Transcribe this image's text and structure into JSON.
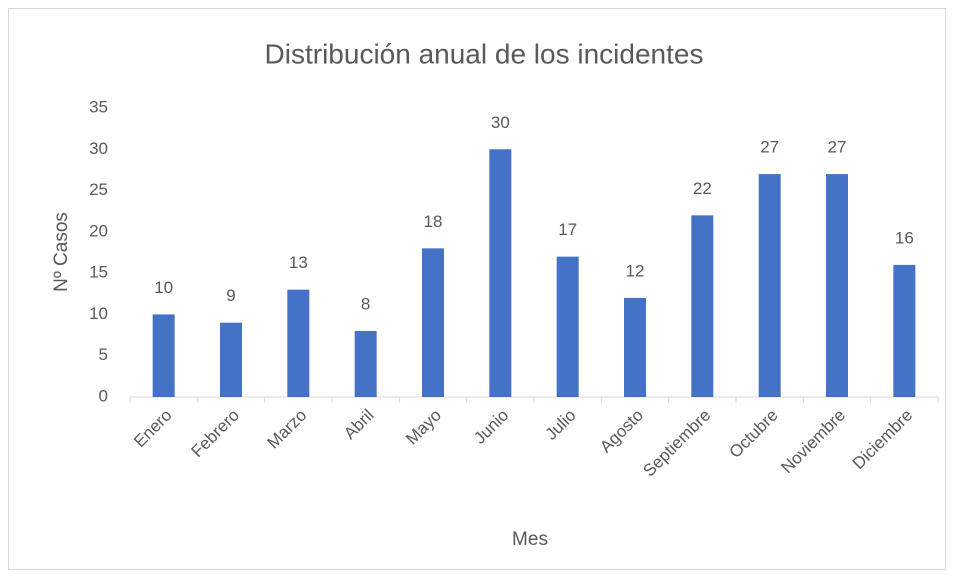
{
  "chart_data": {
    "type": "bar",
    "title": "Distribución anual de los incidentes",
    "x_label": "Mes",
    "y_label": "Nº Casos",
    "categories": [
      "Enero",
      "Febrero",
      "Marzo",
      "Abril",
      "Mayo",
      "Junio",
      "Julio",
      "Agosto",
      "Septiembre",
      "Octubre",
      "Noviembre",
      "Diciembre"
    ],
    "values": [
      10,
      9,
      13,
      8,
      18,
      30,
      17,
      12,
      22,
      27,
      27,
      16
    ],
    "color": "#4472c4",
    "ylim": [
      0,
      35
    ],
    "yticks": [
      0,
      5,
      10,
      15,
      20,
      25,
      30,
      35
    ],
    "grid": false,
    "data_labels": true
  }
}
